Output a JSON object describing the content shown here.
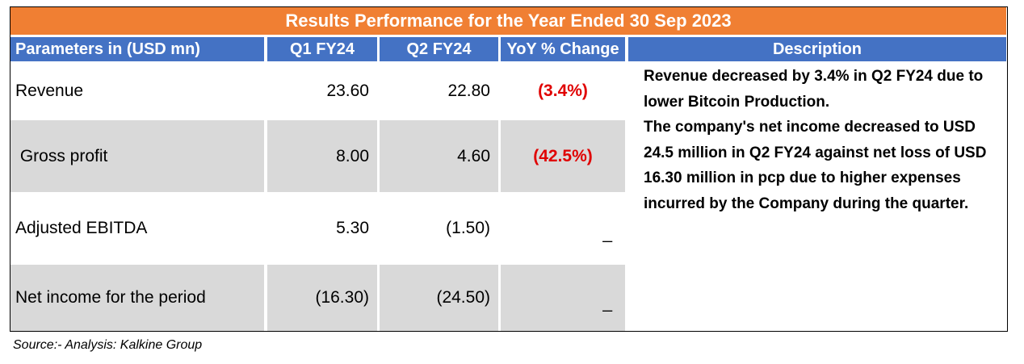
{
  "title": "Results Performance for the Year Ended 30 Sep 2023",
  "headers": [
    "Parameters in (USD mn)",
    "Q1 FY24",
    "Q2 FY24",
    "YoY % Change",
    "Description"
  ],
  "rows": [
    {
      "parameter": "Revenue",
      "q1": "23.60",
      "q2": "22.80",
      "yoy": "(3.4%)"
    },
    {
      "parameter": " Gross profit",
      "q1": "8.00",
      "q2": "4.60",
      "yoy": "(42.5%)"
    },
    {
      "parameter": "Adjusted EBITDA",
      "q1": "5.30",
      "q2": "(1.50)",
      "yoy": "_"
    },
    {
      "parameter": "Net income for the period",
      "q1": "(16.30)",
      "q2": "(24.50)",
      "yoy": "_"
    }
  ],
  "description": [
    "Revenue decreased  by 3.4% in Q2 FY24 due to lower Bitcoin Production.",
    "The company's  net income decreased to USD 24.5 million in  Q2 FY24  against net loss  of USD 16.30 million in pcp due to higher expenses incurred by the Company during the quarter."
  ],
  "source": "Source:- Analysis: Kalkine Group",
  "colors": {
    "title_bg": "#f07f33",
    "header_bg": "#4472c4",
    "row_gray": "#d9d9d9",
    "negative": "#e00000"
  }
}
